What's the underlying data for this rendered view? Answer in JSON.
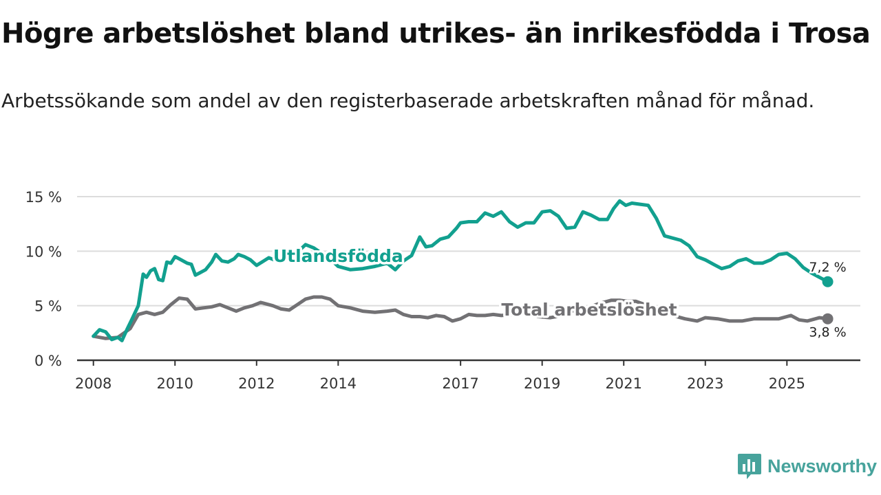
{
  "title": "Högre arbetslöshet bland utrikes- än inrikesfödda i Trosa",
  "subtitle": "Arbetssökande som andel av den registerbaserade arbetskraften månad för månad.",
  "brand": {
    "name": "Newsworthy",
    "icon": "bar-chart-speech-bubble-icon",
    "color": "#47a39c"
  },
  "chart_data": {
    "type": "line",
    "ylim": [
      0,
      16
    ],
    "yticks": [
      0,
      5,
      10,
      15
    ],
    "ytick_labels": [
      "0 %",
      "5 %",
      "10 %",
      "15 %"
    ],
    "xlim": [
      2007.6,
      2026.8
    ],
    "xticks": [
      2008,
      2010,
      2012,
      2014,
      2017,
      2019,
      2021,
      2023,
      2025
    ],
    "xtick_labels": [
      "2008",
      "2010",
      "2012",
      "2014",
      "2017",
      "2019",
      "2021",
      "2023",
      "2025"
    ],
    "grid": true,
    "series": [
      {
        "name": "Utlandsfödda",
        "label": "Utlandsfödda",
        "color": "#12a08f",
        "end_label": "7,2 %",
        "x": [
          2008.0,
          2008.15,
          2008.3,
          2008.45,
          2008.6,
          2008.7,
          2008.82,
          2008.95,
          2009.1,
          2009.22,
          2009.3,
          2009.4,
          2009.5,
          2009.6,
          2009.7,
          2009.8,
          2009.9,
          2010.0,
          2010.1,
          2010.3,
          2010.4,
          2010.5,
          2010.6,
          2010.75,
          2010.9,
          2011.0,
          2011.15,
          2011.3,
          2011.45,
          2011.55,
          2011.7,
          2011.85,
          2012.0,
          2012.3,
          2012.5,
          2012.8,
          2013.0,
          2013.2,
          2013.4,
          2013.6,
          2013.8,
          2014.0,
          2014.3,
          2014.6,
          2014.9,
          2015.2,
          2015.4,
          2015.6,
          2015.8,
          2016.0,
          2016.15,
          2016.3,
          2016.5,
          2016.7,
          2016.9,
          2017.0,
          2017.2,
          2017.4,
          2017.6,
          2017.8,
          2018.0,
          2018.2,
          2018.4,
          2018.6,
          2018.8,
          2019.0,
          2019.2,
          2019.4,
          2019.6,
          2019.8,
          2020.0,
          2020.2,
          2020.4,
          2020.6,
          2020.75,
          2020.9,
          2021.05,
          2021.2,
          2021.4,
          2021.6,
          2021.8,
          2022.0,
          2022.2,
          2022.4,
          2022.6,
          2022.8,
          2023.0,
          2023.2,
          2023.4,
          2023.6,
          2023.8,
          2024.0,
          2024.2,
          2024.4,
          2024.6,
          2024.8,
          2025.0,
          2025.2,
          2025.4,
          2025.6,
          2025.8,
          2026.0
        ],
        "values": [
          2.2,
          2.8,
          2.6,
          1.9,
          2.1,
          1.8,
          2.8,
          3.8,
          5.0,
          7.9,
          7.6,
          8.2,
          8.4,
          7.4,
          7.3,
          9.0,
          8.9,
          9.5,
          9.3,
          8.9,
          8.8,
          7.8,
          8.0,
          8.3,
          9.0,
          9.7,
          9.1,
          9.0,
          9.3,
          9.7,
          9.5,
          9.2,
          8.7,
          9.4,
          9.1,
          9.6,
          9.9,
          10.6,
          10.3,
          9.8,
          9.3,
          8.6,
          8.3,
          8.4,
          8.6,
          8.9,
          8.3,
          9.1,
          9.6,
          11.3,
          10.4,
          10.5,
          11.1,
          11.3,
          12.1,
          12.6,
          12.7,
          12.7,
          13.5,
          13.2,
          13.6,
          12.7,
          12.2,
          12.6,
          12.6,
          13.6,
          13.7,
          13.2,
          12.1,
          12.2,
          13.6,
          13.3,
          12.9,
          12.9,
          13.9,
          14.6,
          14.2,
          14.4,
          14.3,
          14.2,
          13.0,
          11.4,
          11.2,
          11.0,
          10.5,
          9.5,
          9.2,
          8.8,
          8.4,
          8.6,
          9.1,
          9.3,
          8.9,
          8.9,
          9.2,
          9.7,
          9.8,
          9.3,
          8.5,
          8.0,
          7.6,
          7.2
        ]
      },
      {
        "name": "Total arbetslöshet",
        "label": "Total arbetslöshet",
        "color": "#727174",
        "end_label": "3,8 %",
        "x": [
          2008.0,
          2008.3,
          2008.6,
          2008.9,
          2009.1,
          2009.3,
          2009.5,
          2009.7,
          2009.9,
          2010.1,
          2010.3,
          2010.5,
          2010.7,
          2010.9,
          2011.1,
          2011.3,
          2011.5,
          2011.7,
          2011.9,
          2012.1,
          2012.4,
          2012.6,
          2012.8,
          2013.0,
          2013.2,
          2013.4,
          2013.6,
          2013.8,
          2014.0,
          2014.3,
          2014.6,
          2014.9,
          2015.2,
          2015.4,
          2015.6,
          2015.8,
          2016.0,
          2016.2,
          2016.4,
          2016.6,
          2016.8,
          2017.0,
          2017.2,
          2017.4,
          2017.6,
          2017.8,
          2018.0,
          2018.3,
          2018.6,
          2018.9,
          2019.2,
          2019.5,
          2019.8,
          2020.1,
          2020.4,
          2020.7,
          2020.9,
          2021.1,
          2021.3,
          2021.6,
          2021.9,
          2022.2,
          2022.5,
          2022.8,
          2023.0,
          2023.3,
          2023.6,
          2023.9,
          2024.2,
          2024.5,
          2024.8,
          2025.1,
          2025.3,
          2025.5,
          2025.8,
          2026.0
        ],
        "values": [
          2.2,
          2.0,
          2.1,
          2.9,
          4.2,
          4.4,
          4.2,
          4.4,
          5.1,
          5.7,
          5.6,
          4.7,
          4.8,
          4.9,
          5.1,
          4.8,
          4.5,
          4.8,
          5.0,
          5.3,
          5.0,
          4.7,
          4.6,
          5.1,
          5.6,
          5.8,
          5.8,
          5.6,
          5.0,
          4.8,
          4.5,
          4.4,
          4.5,
          4.6,
          4.2,
          4.0,
          4.0,
          3.9,
          4.1,
          4.0,
          3.6,
          3.8,
          4.2,
          4.1,
          4.1,
          4.2,
          4.1,
          4.2,
          4.4,
          4.0,
          3.9,
          4.1,
          4.6,
          4.8,
          5.2,
          5.5,
          5.5,
          5.4,
          5.4,
          5.0,
          4.5,
          4.1,
          3.8,
          3.6,
          3.9,
          3.8,
          3.6,
          3.6,
          3.8,
          3.8,
          3.8,
          4.1,
          3.7,
          3.6,
          3.9,
          3.8
        ]
      }
    ]
  }
}
